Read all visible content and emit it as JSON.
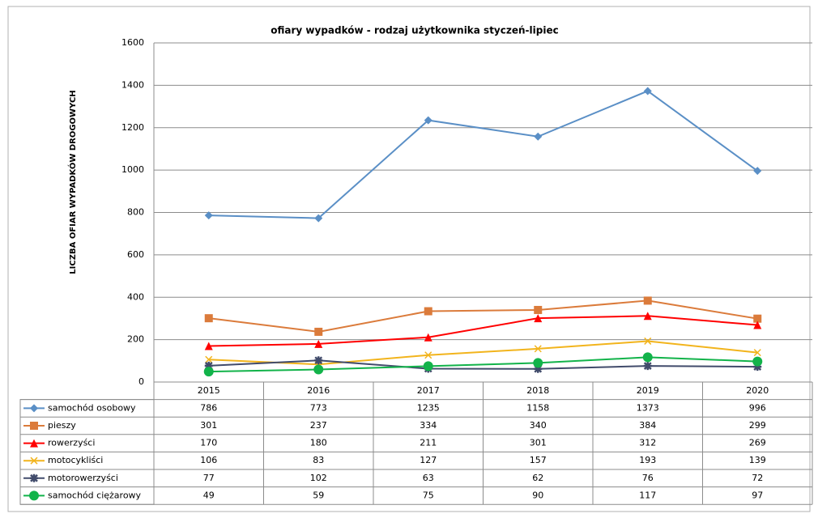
{
  "chart_data": {
    "type": "line",
    "title": "ofiary wypadków - rodzaj użytkownika styczeń-lipiec",
    "y_label": "LICZBA OFIAR WYPADKÓW DROGOWYCH",
    "categories": [
      "2015",
      "2016",
      "2017",
      "2018",
      "2019",
      "2020"
    ],
    "series": [
      {
        "name": "samochód osobowy",
        "color": "#5a8fc6",
        "marker": "diamond",
        "values": [
          786,
          773,
          1235,
          1158,
          1373,
          996
        ]
      },
      {
        "name": "pieszy",
        "color": "#db7b3b",
        "marker": "square",
        "values": [
          301,
          237,
          334,
          340,
          384,
          299
        ]
      },
      {
        "name": "rowerzyści",
        "color": "#ff0000",
        "marker": "triangle",
        "values": [
          170,
          180,
          211,
          301,
          312,
          269
        ]
      },
      {
        "name": "motocykliści",
        "color": "#f2b41c",
        "marker": "x",
        "values": [
          106,
          83,
          127,
          157,
          193,
          139
        ]
      },
      {
        "name": "motorowerzyści",
        "color": "#414b6b",
        "marker": "star",
        "values": [
          77,
          102,
          63,
          62,
          76,
          72
        ]
      },
      {
        "name": "samochód ciężarowy",
        "color": "#12b34a",
        "marker": "circle",
        "values": [
          49,
          59,
          75,
          90,
          117,
          97
        ]
      }
    ],
    "ylim": [
      0,
      1600
    ],
    "yticks": [
      0,
      200,
      400,
      600,
      800,
      1000,
      1200,
      1400,
      1600
    ],
    "grid": true
  }
}
